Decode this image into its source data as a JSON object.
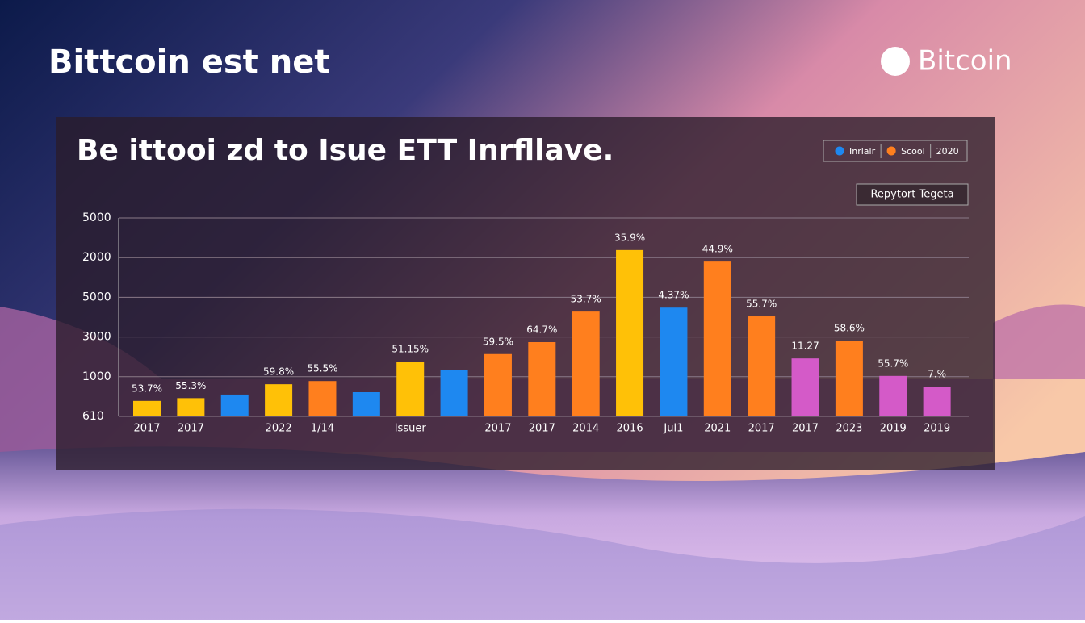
{
  "header": {
    "title": "Bittcoin est net",
    "logo": "Bitcoin"
  },
  "chart_data": {
    "type": "bar",
    "title": "Be ittooi zd to Isue ETT Inrfllave.",
    "legend": [
      {
        "name": "Inrlalr",
        "color": "#1e88f0"
      },
      {
        "name": "Scool",
        "color": "#ff7f1e"
      },
      {
        "name": "2020"
      }
    ],
    "button": "Repytort Tegeta",
    "categories": [
      "2017",
      "2017",
      null,
      "2022",
      "1/14",
      null,
      "Issuer",
      null,
      "2017",
      "2017",
      "2014",
      "2016",
      "Jul1",
      "2021",
      "2017",
      "2017",
      "2023",
      "2019",
      "2019"
    ],
    "values": [
      0.39,
      0.46,
      0.55,
      0.81,
      0.89,
      0.61,
      1.38,
      1.16,
      1.57,
      1.87,
      2.64,
      4.19,
      2.74,
      3.9,
      2.52,
      1.46,
      1.91,
      1.02,
      0.75
    ],
    "bar_labels": [
      "53.7%",
      "55.3%",
      null,
      "59.8%",
      "55.5%",
      null,
      "51.15%",
      null,
      "59.5%",
      "64.7%",
      "53.7%",
      "35.9%",
      "4.37%",
      "44.9%",
      "55.7%",
      "11.27",
      "58.6%",
      "55.7%",
      "7.%"
    ],
    "colors": [
      "#ffc107",
      "#ffc107",
      "#1e88f0",
      "#ffc107",
      "#ff7f1e",
      "#1e88f0",
      "#ffc107",
      "#1e88f0",
      "#ff7f1e",
      "#ff7f1e",
      "#ff7f1e",
      "#ffc107",
      "#1e88f0",
      "#ff7f1e",
      "#ff7f1e",
      "#d45ac8",
      "#ff7f1e",
      "#d45ac8",
      "#d45ac8"
    ],
    "ylim": [
      0,
      5
    ],
    "yticks": [
      {
        "value": 5,
        "label": "5000"
      },
      {
        "value": 4,
        "label": "2000"
      },
      {
        "value": 3,
        "label": "5000"
      },
      {
        "value": 2,
        "label": "3000"
      },
      {
        "value": 1,
        "label": "1000"
      },
      {
        "value": 0,
        "label": "610"
      }
    ],
    "grid": true
  }
}
